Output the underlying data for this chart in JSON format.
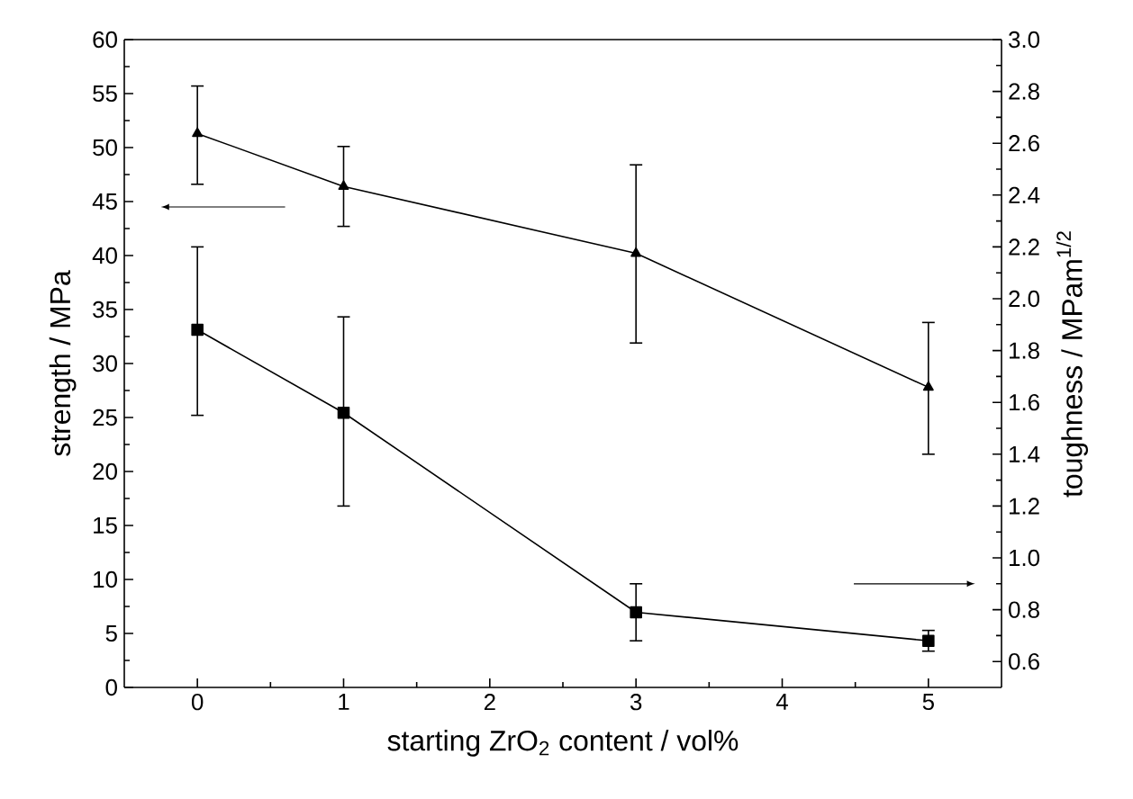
{
  "chart_data": {
    "type": "line",
    "xlabel": "starting ZrO$_{2}$ content / vol%",
    "ylabel": "strength / MPa",
    "y2label": "toughness / MPam$^{1/2}$",
    "x": [
      0,
      1,
      3,
      5
    ],
    "xlim": [
      -0.5,
      5.5
    ],
    "xticks": [
      0,
      1,
      2,
      3,
      4,
      5
    ],
    "ylim": [
      0,
      60
    ],
    "yticks": [
      0,
      5,
      10,
      15,
      20,
      25,
      30,
      35,
      40,
      45,
      50,
      55,
      60
    ],
    "y2lim": [
      0.5,
      3.0
    ],
    "y2ticks": [
      {
        "value": 0.6,
        "label": "0.6"
      },
      {
        "value": 0.8,
        "label": "0.8"
      },
      {
        "value": 1.0,
        "label": "1.0"
      },
      {
        "value": 1.2,
        "label": "1.2"
      },
      {
        "value": 1.4,
        "label": "1.4"
      },
      {
        "value": 1.6,
        "label": "1.6"
      },
      {
        "value": 1.8,
        "label": "1.8"
      },
      {
        "value": 2.0,
        "label": "2.0"
      },
      {
        "value": 2.2,
        "label": "2.2"
      },
      {
        "value": 2.4,
        "label": "2.4"
      },
      {
        "value": 2.6,
        "label": "2.6"
      },
      {
        "value": 2.8,
        "label": "2.8"
      },
      {
        "value": 3.0,
        "label": "3.0"
      }
    ],
    "grid": false,
    "line_style": "solid",
    "series": [
      {
        "color": "#000000",
        "marker": "triangle",
        "values": [
          51.3,
          46.4,
          40.2,
          27.8
        ],
        "errors": [
          [
            46.6,
            55.7
          ],
          [
            42.7,
            50.1
          ],
          [
            31.9,
            48.4
          ],
          [
            21.6,
            33.8
          ]
        ]
      },
      {
        "color": "#000000",
        "marker": "square",
        "axis": "y2",
        "values": [
          1.88,
          1.56,
          0.79,
          0.68
        ],
        "errors": [
          [
            1.55,
            2.2
          ],
          [
            1.2,
            1.93
          ],
          [
            0.68,
            0.9
          ],
          [
            0.64,
            0.72
          ]
        ]
      }
    ]
  }
}
